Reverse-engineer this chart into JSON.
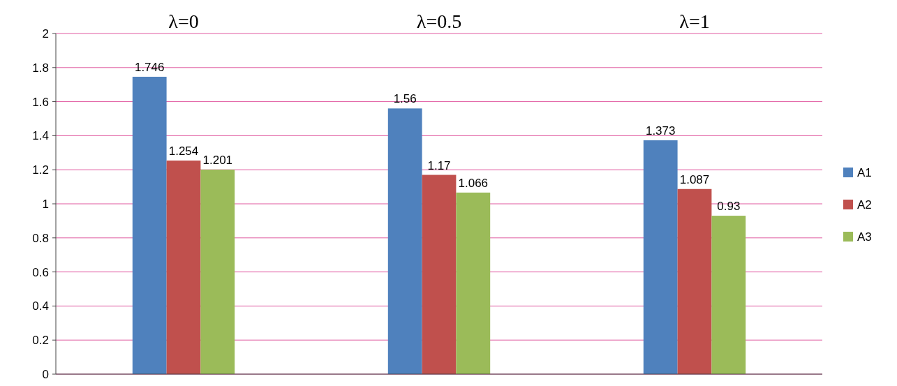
{
  "chart_data": {
    "type": "bar",
    "categories": [
      "λ=0",
      "λ=0.5",
      "λ=1"
    ],
    "series": [
      {
        "name": "A1",
        "color": "#4f81bd",
        "values": [
          1.746,
          1.56,
          1.373
        ]
      },
      {
        "name": "A2",
        "color": "#c0504d",
        "values": [
          1.254,
          1.17,
          1.087
        ]
      },
      {
        "name": "A3",
        "color": "#9bbb59",
        "values": [
          1.201,
          1.066,
          0.93
        ]
      }
    ],
    "ylim": [
      0,
      2
    ],
    "yticks": [
      0,
      0.2,
      0.4,
      0.6,
      0.8,
      1,
      1.2,
      1.4,
      1.6,
      1.8,
      2
    ],
    "grid": "y",
    "legend": "right",
    "data_labels": true
  }
}
